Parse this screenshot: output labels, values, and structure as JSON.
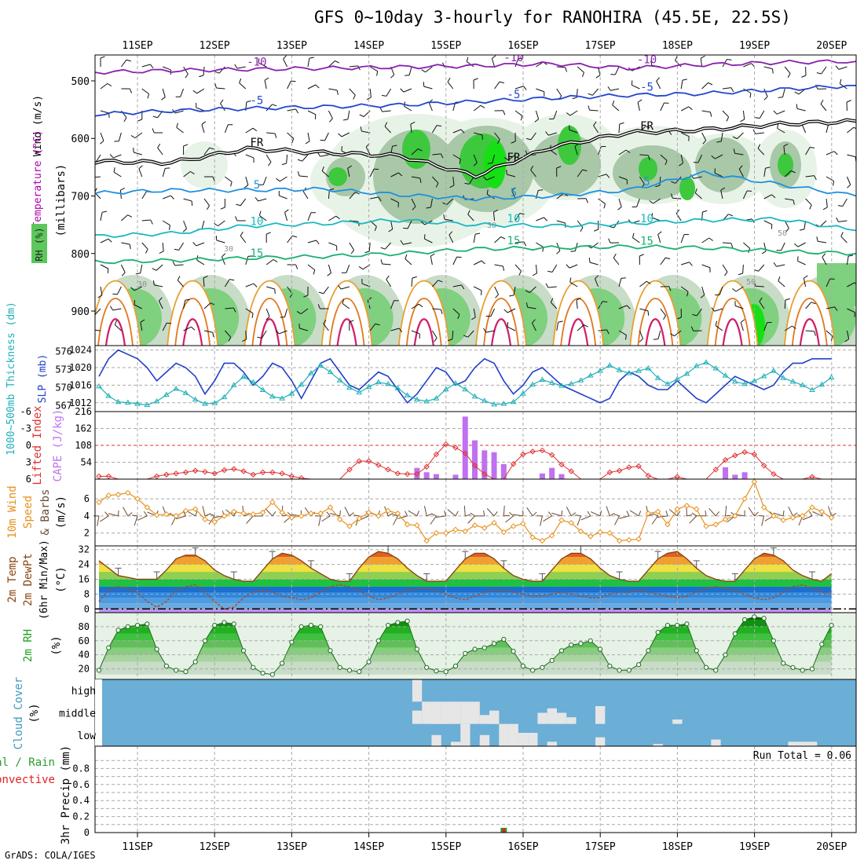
{
  "title": "GFS 0~10day 3-hourly for RANOHIRA (45.5E, 22.5S)",
  "footer": "GrADS: COLA/IGES",
  "chart_data": [
    {
      "type": "contour",
      "panel": "upper-air",
      "dates": [
        "11SEP",
        "12SEP",
        "13SEP",
        "14SEP",
        "15SEP",
        "16SEP",
        "17SEP",
        "18SEP",
        "19SEP",
        "20SEP"
      ],
      "ylabel_parts": [
        {
          "text": "Wind (m/s)",
          "color": "#000000"
        },
        {
          "text": "Temperature (°C)",
          "color": "#b000b0"
        },
        {
          "text": "RH (%)",
          "color": "#333333"
        },
        {
          "text": "(millibars)",
          "color": "#000000"
        }
      ],
      "legend_label": "RH (%)",
      "yticks": [
        500,
        600,
        700,
        800,
        900
      ],
      "ylim": [
        455,
        960
      ],
      "temperature_isotherms": [
        {
          "value": -10,
          "label": "-10",
          "color": "#8a1fb0",
          "p": [
            485,
            482,
            480,
            478,
            476,
            474,
            470,
            478,
            472,
            468,
            466
          ]
        },
        {
          "value": -5,
          "label": "-5",
          "color": "#2046d0",
          "p": [
            558,
            552,
            548,
            545,
            542,
            536,
            530,
            525,
            522,
            515,
            508
          ]
        },
        {
          "value": 0,
          "label": "FR",
          "color": "#000000",
          "p": [
            640,
            642,
            618,
            625,
            630,
            665,
            615,
            590,
            585,
            575,
            570
          ]
        },
        {
          "value": 5,
          "label": "5",
          "color": "#1e90e0",
          "p": [
            695,
            690,
            690,
            688,
            698,
            705,
            700,
            690,
            660,
            680,
            700
          ]
        },
        {
          "value": 10,
          "label": "10",
          "color": "#18b8c0",
          "p": [
            770,
            765,
            752,
            748,
            742,
            750,
            752,
            748,
            742,
            740,
            760
          ]
        },
        {
          "value": 15,
          "label": "15",
          "color": "#18b070",
          "p": [
            815,
            812,
            808,
            805,
            800,
            792,
            790,
            788,
            790,
            796,
            800
          ]
        }
      ],
      "rh_labels": [
        "30",
        "30",
        "30",
        "50",
        "50"
      ]
    },
    {
      "type": "line",
      "panel": "thickness-slp",
      "ylabel_left": "1000~500mb Thickness (dm)",
      "ylabel_right": "SLP (mb)",
      "yticks_left": [
        567,
        570,
        573,
        576
      ],
      "yticks_right": [
        1012,
        1016,
        1020,
        1024
      ],
      "series": [
        {
          "name": "SLP (mb)",
          "color": "#2040c8",
          "values": [
            1018,
            1022,
            1024,
            1023,
            1022,
            1020,
            1017,
            1019,
            1021,
            1020,
            1018,
            1014,
            1017,
            1021,
            1021,
            1019,
            1016,
            1018,
            1021,
            1020,
            1017,
            1013,
            1017,
            1021,
            1022,
            1019,
            1016,
            1015,
            1017,
            1019,
            1018,
            1015,
            1012,
            1014,
            1017,
            1020,
            1019,
            1016,
            1017,
            1020,
            1022,
            1021,
            1017,
            1014,
            1016,
            1019,
            1020,
            1018,
            1016,
            1015,
            1014,
            1013,
            1012,
            1013,
            1017,
            1019,
            1018,
            1016,
            1015,
            1015,
            1017,
            1015,
            1013,
            1012,
            1014,
            1016,
            1018,
            1017,
            1016,
            1015,
            1016,
            1019,
            1021,
            1021,
            1022,
            1022,
            1022
          ]
        },
        {
          "name": "Thickness (dm)",
          "color": "#20b0b8",
          "values": [
            570.2,
            568.6,
            567.6,
            567.5,
            567.3,
            567.1,
            567.7,
            568.8,
            569.8,
            569.1,
            568.0,
            567.3,
            567.4,
            568.4,
            570.4,
            571.8,
            570.9,
            569.6,
            568.5,
            568.2,
            569.0,
            570.5,
            572.4,
            573.7,
            572.6,
            571.2,
            570.0,
            569.2,
            570.1,
            570.9,
            570.6,
            569.9,
            568.7,
            568.0,
            567.7,
            568.2,
            569.7,
            570.7,
            569.7,
            568.5,
            567.8,
            567.2,
            567.3,
            567.6,
            569.0,
            570.5,
            571.3,
            570.8,
            570.3,
            570.6,
            571.2,
            572.0,
            572.8,
            573.7,
            572.9,
            572.4,
            572.8,
            573.2,
            571.6,
            570.6,
            571.4,
            572.3,
            573.6,
            574.2,
            573.2,
            572.0,
            571.0,
            570.6,
            571.1,
            571.9,
            572.8,
            571.6,
            571.0,
            570.4,
            569.6,
            570.5,
            571.7
          ]
        }
      ]
    },
    {
      "type": "bar",
      "panel": "lifted-index-cape",
      "ylabel_left": "Lifted Index",
      "ylabel_right": "CAPE (J/kg)",
      "yticks_left": [
        "-6",
        "-3",
        "0",
        "3",
        "6"
      ],
      "yticks_right": [
        54,
        108,
        162,
        216
      ],
      "series": [
        {
          "name": "Lifted Index",
          "color": "#e03030",
          "values": [
            5.5,
            5.5,
            6,
            6,
            6,
            6,
            5.5,
            5.2,
            5.0,
            4.8,
            4.5,
            4.7,
            5.0,
            4.4,
            4.2,
            4.6,
            5.2,
            4.8,
            4.8,
            5.0,
            5.5,
            5.8,
            6,
            6,
            6,
            6,
            4.3,
            2.8,
            2.8,
            3.5,
            4.3,
            5.0,
            5.1,
            5.1,
            3.8,
            1.6,
            -0.2,
            0.4,
            1.4,
            3.6,
            5.1,
            6,
            6,
            3.3,
            1.6,
            1.1,
            0.9,
            1.7,
            3.4,
            4.6,
            6,
            6,
            6,
            4.8,
            4.5,
            3.9,
            3.7,
            5.4,
            6,
            6,
            5.6,
            6,
            6,
            6,
            4.3,
            2.6,
            1.8,
            1.2,
            1.6,
            3.6,
            5.1,
            6,
            6,
            6,
            5.6,
            6,
            6
          ]
        },
        {
          "name": "CAPE (J/kg)",
          "color": "#c070f0",
          "values": [
            0,
            0,
            0,
            0,
            0,
            0,
            0,
            0,
            0,
            0,
            0,
            0,
            0,
            0,
            0,
            0,
            0,
            0,
            0,
            0,
            0,
            0,
            0,
            0,
            0,
            0,
            0,
            0,
            0,
            0,
            0,
            0,
            0,
            0,
            0,
            0,
            0,
            0,
            0,
            0,
            0,
            0,
            0,
            0,
            0,
            0,
            0,
            0,
            0,
            0,
            0,
            0,
            0,
            0,
            0,
            0,
            0,
            0,
            0,
            0,
            0,
            0,
            0,
            0,
            0,
            0,
            0,
            0,
            0,
            0,
            0,
            0,
            0,
            0,
            0,
            0,
            0
          ]
        }
      ],
      "cape_bars": [
        {
          "slot": 33,
          "value": 36
        },
        {
          "slot": 34,
          "value": 22
        },
        {
          "slot": 35,
          "value": 16
        },
        {
          "slot": 37,
          "value": 14
        },
        {
          "slot": 38,
          "value": 200
        },
        {
          "slot": 39,
          "value": 124
        },
        {
          "slot": 40,
          "value": 92
        },
        {
          "slot": 41,
          "value": 86
        },
        {
          "slot": 42,
          "value": 48
        },
        {
          "slot": 46,
          "value": 18
        },
        {
          "slot": 47,
          "value": 36
        },
        {
          "slot": 48,
          "value": 16
        },
        {
          "slot": 65,
          "value": 38
        },
        {
          "slot": 66,
          "value": 14
        },
        {
          "slot": 67,
          "value": 22
        }
      ]
    },
    {
      "type": "line",
      "panel": "10m-wind",
      "ylabel": "10m Wind Speed & Barbs (m/s)",
      "yticks": [
        2,
        4,
        6
      ],
      "series": [
        {
          "name": "10m Wind Speed",
          "color": "#e8901a",
          "values": [
            5.6,
            6.4,
            6.5,
            6.7,
            6.0,
            5.0,
            4.1,
            4.2,
            4.0,
            4.6,
            4.8,
            3.6,
            3.3,
            4.0,
            4.5,
            4.3,
            4.2,
            4.4,
            5.6,
            4.4,
            3.8,
            4.0,
            4.3,
            4.3,
            5.0,
            3.6,
            2.8,
            3.7,
            4.4,
            4.0,
            4.6,
            4.3,
            3.0,
            2.9,
            1.1,
            2.0,
            2.0,
            2.4,
            2.2,
            2.9,
            2.6,
            3.2,
            2.1,
            2.8,
            3.1,
            1.5,
            1.1,
            1.7,
            3.5,
            3.2,
            2.2,
            1.6,
            2.1,
            2.0,
            1.1,
            1.2,
            1.3,
            4.3,
            4.5,
            3.0,
            4.8,
            5.2,
            4.8,
            2.8,
            3.0,
            3.6,
            4.0,
            6.0,
            8.0,
            5.0,
            4.0,
            3.5,
            3.8,
            4.0,
            5.0,
            4.5,
            3.8
          ]
        }
      ]
    },
    {
      "type": "area",
      "panel": "2m-temperature",
      "ylabel": "2m Temp 2m DewPt (6hr Min/Max) (°C)",
      "yticks": [
        0,
        8,
        16,
        24,
        32
      ],
      "series": [
        {
          "name": "2m Temp",
          "color": "#8b4513",
          "values": [
            26,
            22,
            18,
            17,
            16,
            16,
            16,
            21,
            27,
            29,
            29,
            26,
            21,
            18,
            16,
            15,
            15,
            21,
            27,
            30,
            29,
            26,
            22,
            19,
            16,
            15,
            15,
            22,
            28,
            31,
            30,
            27,
            22,
            18,
            15,
            15,
            15,
            21,
            27,
            30,
            30,
            27,
            22,
            18,
            16,
            15,
            15,
            21,
            27,
            30,
            30,
            27,
            22,
            18,
            16,
            15,
            15,
            21,
            27,
            30,
            31,
            27,
            22,
            18,
            16,
            15,
            15,
            21,
            27,
            30,
            29,
            26,
            21,
            18,
            16,
            15,
            19
          ]
        },
        {
          "name": "2m DewPt",
          "color": "#a0522d",
          "values": [
            4,
            10,
            12,
            11,
            9,
            4,
            1,
            4,
            10,
            12,
            13,
            9,
            4,
            0,
            1,
            6,
            9,
            10,
            9,
            7,
            6,
            5,
            6,
            9,
            12,
            13,
            12,
            10,
            7,
            5,
            6,
            8,
            10,
            11,
            11,
            10,
            8,
            6,
            5,
            7,
            9,
            10,
            10,
            9,
            8,
            7,
            7,
            8,
            9,
            8,
            7,
            6,
            6,
            8,
            9,
            9,
            10,
            9,
            8,
            7,
            6,
            7,
            9,
            11,
            12,
            11,
            10,
            8,
            6,
            5,
            6,
            9,
            12,
            13,
            11,
            9,
            8
          ]
        }
      ]
    },
    {
      "type": "area",
      "panel": "2m-rh",
      "ylabel": "2m RH (%)",
      "yticks": [
        20,
        40,
        60,
        80
      ],
      "series": [
        {
          "name": "2m RH",
          "color": "#1e9a1e",
          "values": [
            18,
            50,
            75,
            80,
            82,
            84,
            48,
            24,
            18,
            16,
            30,
            60,
            82,
            86,
            84,
            46,
            22,
            14,
            12,
            28,
            58,
            80,
            82,
            80,
            46,
            22,
            18,
            16,
            30,
            60,
            82,
            86,
            88,
            48,
            22,
            17,
            16,
            24,
            42,
            48,
            50,
            56,
            62,
            45,
            24,
            18,
            22,
            32,
            46,
            54,
            56,
            60,
            48,
            24,
            18,
            18,
            26,
            46,
            72,
            82,
            82,
            84,
            46,
            22,
            18,
            40,
            70,
            90,
            94,
            92,
            60,
            28,
            22,
            18,
            20,
            55,
            82
          ]
        }
      ]
    },
    {
      "type": "heatmap",
      "panel": "cloud-cover",
      "ylabel": "Cloud Cover (%)",
      "levels": [
        "high",
        "middle",
        "low"
      ]
    },
    {
      "type": "bar",
      "panel": "3hr-precip",
      "ylabel_parts": [
        {
          "text": "Total / Rain",
          "color": "#2aa02a"
        },
        {
          "text": "Convective",
          "color": "#e02020"
        },
        {
          "text": "3hr Precip (mm)",
          "color": "#000000"
        }
      ],
      "yticks": [
        0,
        0.2,
        0.4,
        0.6,
        0.8
      ],
      "ylim": [
        0,
        1.0
      ],
      "annotation": "Run Total = 0.06",
      "bars": [
        {
          "slot": 42,
          "total": 0.06,
          "convective": 0.05
        }
      ]
    }
  ]
}
